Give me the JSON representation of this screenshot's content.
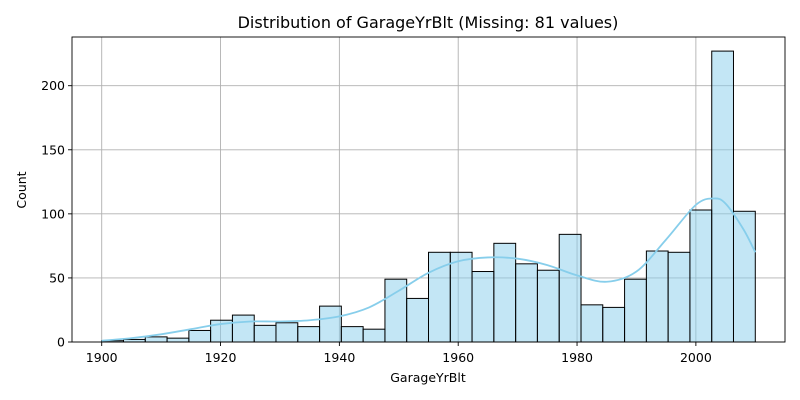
{
  "chart_data": {
    "type": "bar",
    "title": "Distribution of GarageYrBlt (Missing: 81 values)",
    "xlabel": "GarageYrBlt",
    "ylabel": "Count",
    "xlim": [
      1895,
      2015
    ],
    "ylim": [
      0,
      238
    ],
    "grid": true,
    "bin_edges": [
      1900,
      1903.67,
      1907.33,
      1911,
      1914.67,
      1918.33,
      1922,
      1925.67,
      1929.33,
      1933,
      1936.67,
      1940.33,
      1944,
      1947.67,
      1951.33,
      1955,
      1958.67,
      1962.33,
      1966,
      1969.67,
      1973.33,
      1977,
      1980.67,
      1984.33,
      1988,
      1991.67,
      1995.33,
      1999,
      2002.67,
      2006.33,
      2010
    ],
    "counts": [
      1,
      2,
      4,
      3,
      9,
      17,
      21,
      13,
      15,
      12,
      28,
      12,
      10,
      49,
      34,
      70,
      70,
      55,
      77,
      61,
      56,
      84,
      29,
      27,
      49,
      71,
      70,
      103,
      227,
      102
    ],
    "kde": {
      "x": [
        1900,
        1905,
        1910,
        1915,
        1920,
        1925,
        1930,
        1935,
        1940,
        1945,
        1950,
        1955,
        1960,
        1965,
        1970,
        1975,
        1980,
        1985,
        1990,
        1995,
        2000,
        2003,
        2005,
        2008,
        2010
      ],
      "y": [
        1,
        3,
        6,
        10,
        14,
        16,
        16,
        17,
        20,
        27,
        40,
        54,
        63,
        66,
        65,
        60,
        52,
        47,
        55,
        80,
        107,
        112,
        108,
        88,
        70
      ]
    },
    "x_ticks": [
      "1900",
      "1920",
      "1940",
      "1960",
      "1980",
      "2000"
    ],
    "y_ticks": [
      "0",
      "50",
      "100",
      "150",
      "200"
    ],
    "colors": {
      "bar": "#87ceeb",
      "kde": "#87ceeb"
    }
  }
}
